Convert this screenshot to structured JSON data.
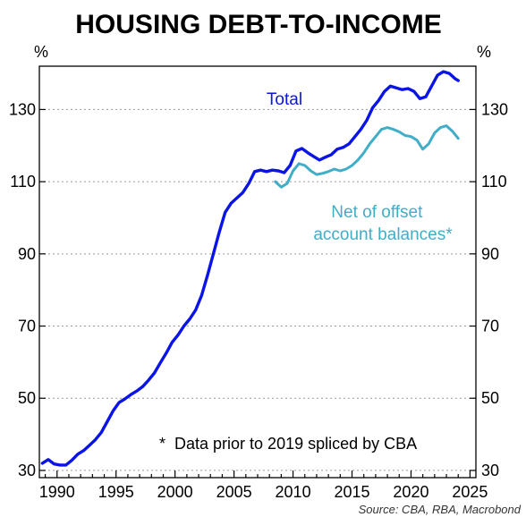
{
  "chart_data": {
    "type": "line",
    "title": "HOUSING DEBT-TO-INCOME",
    "unit_left": "%",
    "unit_right": "%",
    "xlim": [
      1988.5,
      2025.5
    ],
    "ylim": [
      28,
      142
    ],
    "x_ticks": [
      1990,
      1995,
      2000,
      2005,
      2010,
      2015,
      2020,
      2025
    ],
    "y_ticks": [
      30,
      50,
      70,
      90,
      110,
      130
    ],
    "grid": "horizontal dotted",
    "series": [
      {
        "name": "Total",
        "color": "#0a14e6",
        "points": [
          [
            1988.75,
            32.0
          ],
          [
            1989.25,
            33.0
          ],
          [
            1989.75,
            31.8
          ],
          [
            1990.25,
            31.5
          ],
          [
            1990.75,
            31.5
          ],
          [
            1991.25,
            32.8
          ],
          [
            1991.75,
            34.5
          ],
          [
            1992.25,
            35.5
          ],
          [
            1992.75,
            37.0
          ],
          [
            1993.25,
            38.5
          ],
          [
            1993.75,
            40.5
          ],
          [
            1994.25,
            43.5
          ],
          [
            1994.75,
            46.5
          ],
          [
            1995.25,
            48.8
          ],
          [
            1995.75,
            49.8
          ],
          [
            1996.25,
            51.0
          ],
          [
            1996.75,
            52.0
          ],
          [
            1997.25,
            53.2
          ],
          [
            1997.75,
            55.0
          ],
          [
            1998.25,
            57.0
          ],
          [
            1998.75,
            59.8
          ],
          [
            1999.25,
            62.5
          ],
          [
            1999.75,
            65.5
          ],
          [
            2000.25,
            67.5
          ],
          [
            2000.75,
            70.0
          ],
          [
            2001.25,
            72.0
          ],
          [
            2001.75,
            74.5
          ],
          [
            2002.25,
            78.5
          ],
          [
            2002.75,
            84.0
          ],
          [
            2003.25,
            90.0
          ],
          [
            2003.75,
            96.0
          ],
          [
            2004.25,
            101.5
          ],
          [
            2004.75,
            104.0
          ],
          [
            2005.25,
            105.5
          ],
          [
            2005.75,
            107.0
          ],
          [
            2006.25,
            109.5
          ],
          [
            2006.75,
            112.8
          ],
          [
            2007.25,
            113.2
          ],
          [
            2007.75,
            112.8
          ],
          [
            2008.25,
            113.2
          ],
          [
            2008.75,
            113.0
          ],
          [
            2009.25,
            112.5
          ],
          [
            2009.75,
            114.5
          ],
          [
            2010.25,
            118.5
          ],
          [
            2010.75,
            119.2
          ],
          [
            2011.25,
            118.0
          ],
          [
            2011.75,
            117.0
          ],
          [
            2012.25,
            116.0
          ],
          [
            2012.75,
            116.8
          ],
          [
            2013.25,
            117.5
          ],
          [
            2013.75,
            119.0
          ],
          [
            2014.25,
            119.5
          ],
          [
            2014.75,
            120.5
          ],
          [
            2015.25,
            122.5
          ],
          [
            2015.75,
            124.5
          ],
          [
            2016.25,
            127.0
          ],
          [
            2016.75,
            130.5
          ],
          [
            2017.25,
            132.5
          ],
          [
            2017.75,
            135.0
          ],
          [
            2018.25,
            136.5
          ],
          [
            2018.75,
            136.0
          ],
          [
            2019.25,
            135.5
          ],
          [
            2019.75,
            135.8
          ],
          [
            2020.25,
            135.0
          ],
          [
            2020.75,
            133.0
          ],
          [
            2021.25,
            133.5
          ],
          [
            2021.75,
            136.5
          ],
          [
            2022.25,
            139.5
          ],
          [
            2022.75,
            140.5
          ],
          [
            2023.25,
            140.0
          ],
          [
            2023.75,
            138.5
          ],
          [
            2024.0,
            138.0
          ]
        ]
      },
      {
        "name": "Net of offset account balances*",
        "color": "#41aec7",
        "points": [
          [
            2008.5,
            110.0
          ],
          [
            2009.0,
            108.5
          ],
          [
            2009.5,
            109.5
          ],
          [
            2010.0,
            113.0
          ],
          [
            2010.5,
            115.0
          ],
          [
            2011.0,
            114.5
          ],
          [
            2011.5,
            113.0
          ],
          [
            2012.0,
            112.0
          ],
          [
            2012.5,
            112.3
          ],
          [
            2013.0,
            112.8
          ],
          [
            2013.5,
            113.5
          ],
          [
            2014.0,
            113.0
          ],
          [
            2014.5,
            113.5
          ],
          [
            2015.0,
            114.5
          ],
          [
            2015.5,
            116.0
          ],
          [
            2016.0,
            118.0
          ],
          [
            2016.5,
            120.5
          ],
          [
            2017.0,
            122.5
          ],
          [
            2017.5,
            124.5
          ],
          [
            2018.0,
            125.0
          ],
          [
            2018.5,
            124.5
          ],
          [
            2019.0,
            123.8
          ],
          [
            2019.5,
            122.8
          ],
          [
            2020.0,
            122.5
          ],
          [
            2020.5,
            121.5
          ],
          [
            2021.0,
            119.0
          ],
          [
            2021.5,
            120.5
          ],
          [
            2022.0,
            123.5
          ],
          [
            2022.5,
            125.0
          ],
          [
            2023.0,
            125.5
          ],
          [
            2023.5,
            124.0
          ],
          [
            2024.0,
            122.0
          ]
        ]
      }
    ],
    "series_labels": [
      [
        "Total"
      ],
      [
        "Net of offset",
        "account balances*"
      ]
    ],
    "note": "*  Data prior to 2019 spliced by CBA",
    "source": "Source: CBA, RBA, Macrobond"
  }
}
